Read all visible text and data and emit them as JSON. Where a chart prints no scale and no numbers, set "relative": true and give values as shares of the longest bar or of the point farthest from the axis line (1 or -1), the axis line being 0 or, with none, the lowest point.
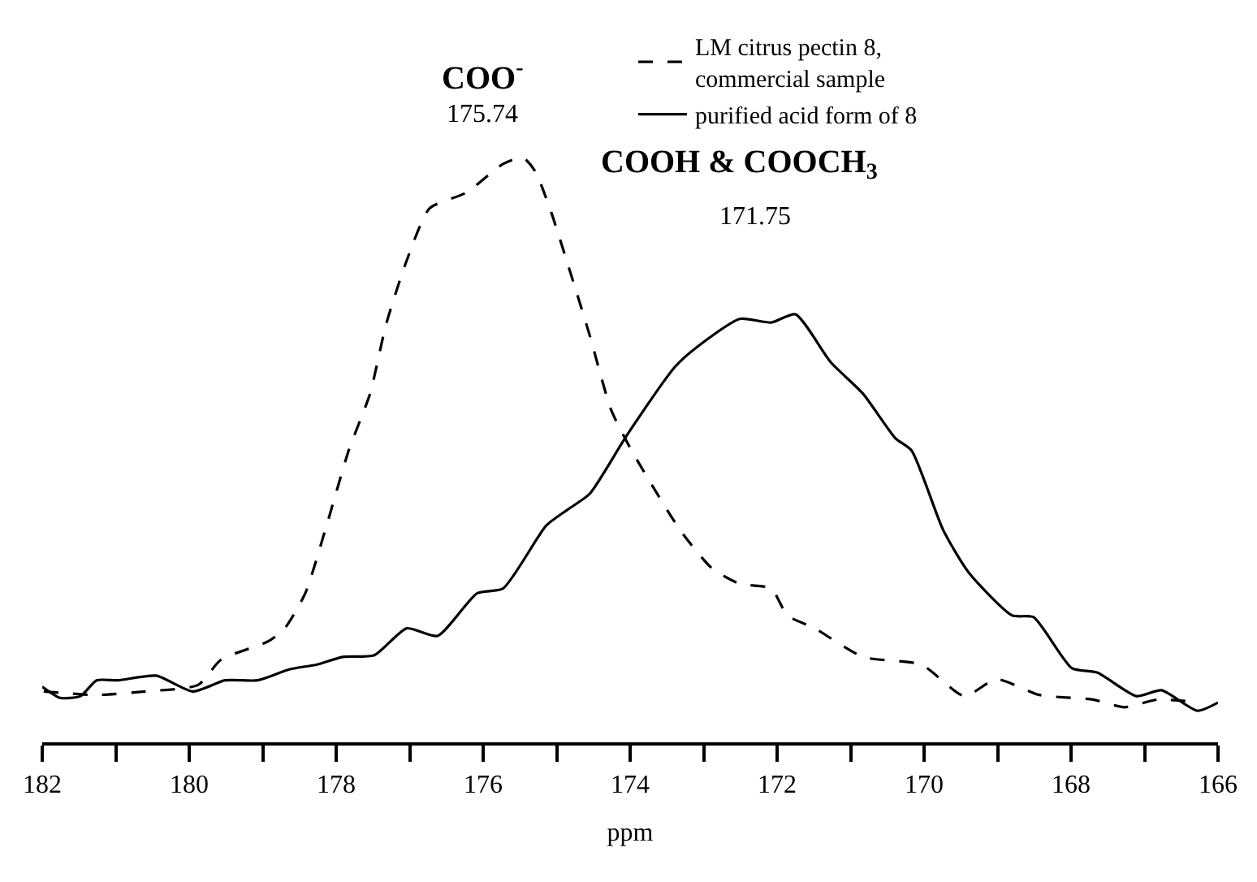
{
  "chart_data": {
    "type": "line",
    "relative": true,
    "xlabel": "ppm",
    "xlim": [
      182,
      166
    ],
    "xticks": [
      182,
      {
        "value": 181,
        "label": null
      },
      180,
      {
        "value": 179,
        "label": null
      },
      178,
      {
        "value": 177,
        "label": null
      },
      176,
      {
        "value": 175,
        "label": null
      },
      174,
      {
        "value": 173,
        "label": null
      },
      172,
      {
        "value": 171,
        "label": null
      },
      170,
      {
        "value": 169,
        "label": null
      },
      168,
      {
        "value": 167,
        "label": null
      },
      166
    ],
    "legend": "top right",
    "tick_labels": "x",
    "series": [
      {
        "name": "LM citrus pectin 8,\ncommercial sample",
        "color": "#000000",
        "line_style": "dashed",
        "x": [
          181.98,
          181.26,
          180.6,
          179.88,
          179.57,
          178.92,
          178.7,
          178.42,
          178.13,
          177.83,
          177.54,
          177.32,
          177.04,
          176.73,
          176.23,
          175.73,
          175.46,
          175.29,
          175.07,
          174.77,
          174.55,
          174.26,
          173.98,
          173.32,
          172.89,
          172.51,
          172.08,
          171.86,
          171.49,
          170.83,
          170.04,
          169.45,
          169.02,
          168.43,
          167.7,
          167.27,
          166.83,
          166.39
        ],
        "values": [
          0.087,
          0.081,
          0.087,
          0.098,
          0.141,
          0.173,
          0.195,
          0.255,
          0.371,
          0.499,
          0.596,
          0.715,
          0.824,
          0.913,
          0.94,
          0.989,
          1.0,
          0.976,
          0.905,
          0.786,
          0.696,
          0.569,
          0.499,
          0.363,
          0.298,
          0.271,
          0.263,
          0.217,
          0.195,
          0.146,
          0.133,
          0.079,
          0.108,
          0.081,
          0.073,
          0.06,
          0.073,
          0.07
        ]
      },
      {
        "name": "purified acid form of 8",
        "color": "#000000",
        "line_style": "solid",
        "x": [
          182.0,
          181.76,
          181.48,
          181.26,
          180.97,
          180.45,
          179.95,
          179.51,
          179.07,
          178.63,
          178.26,
          177.91,
          177.48,
          177.04,
          176.62,
          176.08,
          175.73,
          175.14,
          174.85,
          174.55,
          174.04,
          173.39,
          173.1,
          172.51,
          172.08,
          171.75,
          171.27,
          170.83,
          170.39,
          170.17,
          169.74,
          169.39,
          168.8,
          168.51,
          167.99,
          167.64,
          167.11,
          166.77,
          166.28,
          166.0
        ],
        "values": [
          0.095,
          0.076,
          0.079,
          0.106,
          0.106,
          0.114,
          0.087,
          0.106,
          0.106,
          0.125,
          0.133,
          0.146,
          0.149,
          0.195,
          0.182,
          0.255,
          0.263,
          0.371,
          0.398,
          0.425,
          0.526,
          0.642,
          0.675,
          0.724,
          0.718,
          0.732,
          0.65,
          0.596,
          0.52,
          0.499,
          0.363,
          0.29,
          0.217,
          0.214,
          0.127,
          0.119,
          0.079,
          0.089,
          0.054,
          0.068
        ]
      }
    ],
    "annotations": [
      "COO$^{-}$",
      "175.74",
      "COOH & COOCH$_{3}$",
      "171.75"
    ]
  }
}
